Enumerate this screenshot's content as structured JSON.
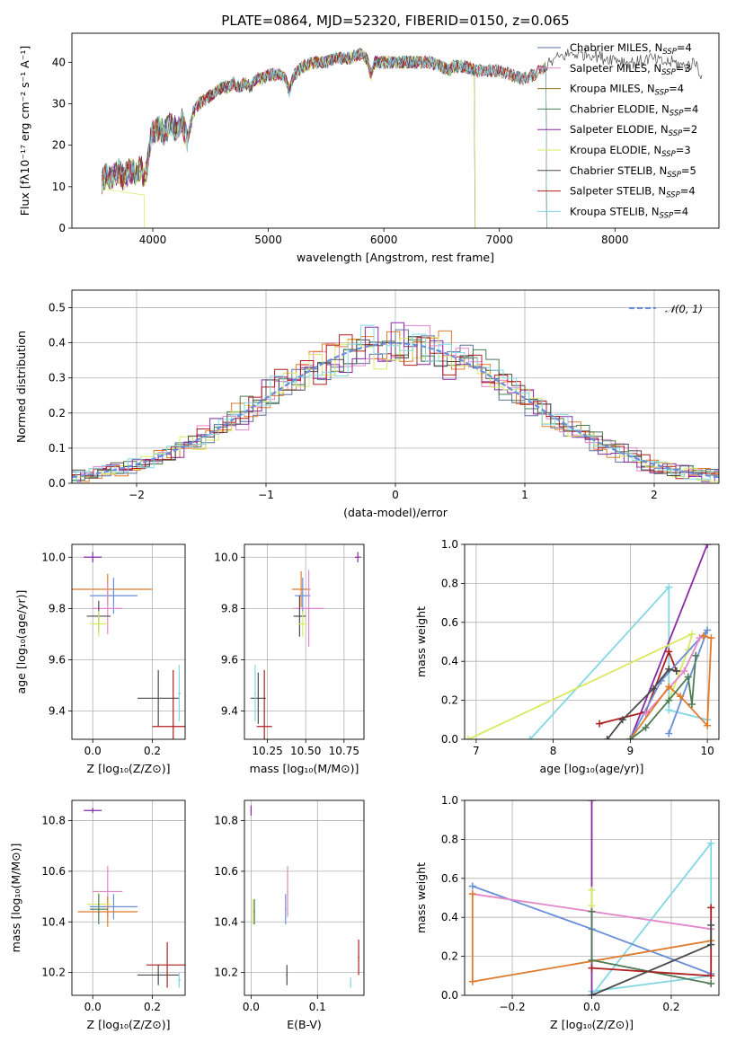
{
  "figure": {
    "title": "PLATE=0864, MJD=52320, FIBERID=0150, z=0.065"
  },
  "chart_data": [
    {
      "id": "spectrum",
      "type": "line",
      "xlabel": "wavelength [Angstrom, rest frame]",
      "ylabel": "Flux [fλ10⁻¹⁷ erg cm⁻² s⁻¹ A⁻¹]",
      "xlim": [
        3300,
        8900
      ],
      "ylim": [
        0,
        47
      ],
      "xticks": [
        4000,
        5000,
        6000,
        7000,
        8000
      ],
      "yticks": [
        0,
        10,
        20,
        30,
        40
      ],
      "grid": false,
      "legend_position": "top-right",
      "spectrum_profile": [
        [
          3560,
          11
        ],
        [
          3600,
          13
        ],
        [
          3650,
          12
        ],
        [
          3700,
          14
        ],
        [
          3750,
          12
        ],
        [
          3800,
          14
        ],
        [
          3850,
          13
        ],
        [
          3900,
          15
        ],
        [
          3920,
          11
        ],
        [
          3950,
          14
        ],
        [
          3980,
          21
        ],
        [
          4000,
          23
        ],
        [
          4050,
          24
        ],
        [
          4100,
          23
        ],
        [
          4150,
          25
        ],
        [
          4200,
          24
        ],
        [
          4250,
          26
        ],
        [
          4300,
          21
        ],
        [
          4350,
          28
        ],
        [
          4400,
          30
        ],
        [
          4450,
          31
        ],
        [
          4500,
          32
        ],
        [
          4550,
          33
        ],
        [
          4600,
          34
        ],
        [
          4650,
          34
        ],
        [
          4700,
          35
        ],
        [
          4750,
          34
        ],
        [
          4800,
          35
        ],
        [
          4850,
          34
        ],
        [
          4900,
          36
        ],
        [
          4950,
          36
        ],
        [
          5000,
          37
        ],
        [
          5050,
          37
        ],
        [
          5100,
          37
        ],
        [
          5150,
          36
        ],
        [
          5180,
          33
        ],
        [
          5220,
          37
        ],
        [
          5300,
          39
        ],
        [
          5400,
          40
        ],
        [
          5500,
          40
        ],
        [
          5600,
          41
        ],
        [
          5700,
          41
        ],
        [
          5800,
          42
        ],
        [
          5850,
          41
        ],
        [
          5890,
          37
        ],
        [
          5920,
          40
        ],
        [
          6000,
          40
        ],
        [
          6100,
          40
        ],
        [
          6200,
          40
        ],
        [
          6300,
          40
        ],
        [
          6400,
          40
        ],
        [
          6500,
          39
        ],
        [
          6560,
          38
        ],
        [
          6600,
          39
        ],
        [
          6700,
          39
        ],
        [
          6800,
          38
        ],
        [
          6900,
          38
        ],
        [
          7000,
          38
        ],
        [
          7100,
          37
        ],
        [
          7200,
          36
        ],
        [
          7300,
          37
        ],
        [
          7400,
          39
        ],
        [
          7500,
          41
        ],
        [
          7600,
          42
        ],
        [
          7700,
          42
        ],
        [
          7800,
          42
        ],
        [
          7900,
          41
        ],
        [
          8000,
          41
        ],
        [
          8100,
          40
        ],
        [
          8200,
          40
        ],
        [
          8300,
          41
        ],
        [
          8400,
          40
        ],
        [
          8500,
          40
        ],
        [
          8600,
          39
        ],
        [
          8700,
          40
        ],
        [
          8760,
          36
        ]
      ],
      "series": [
        {
          "name": "Chabrier MILES, N_SSP=4",
          "color": "#5b6f9b",
          "xmax": 7410
        },
        {
          "name": "Salpeter MILES, N_SSP=3",
          "color": "#e287c9",
          "xmax": 7410
        },
        {
          "name": "Kroupa MILES, N_SSP=4",
          "color": "#8e7521",
          "xmax": 7410
        },
        {
          "name": "Chabrier ELODIE, N_SSP=4",
          "color": "#4d7b54",
          "xmax": 6790
        },
        {
          "name": "Salpeter ELODIE, N_SSP=2",
          "color": "#8a2aa5",
          "xmax": 6790
        },
        {
          "name": "Kroupa ELODIE, N_SSP=3",
          "color": "#d8ea60",
          "xmax": 6790
        },
        {
          "name": "Chabrier STELIB, N_SSP=5",
          "color": "#4b4b4b",
          "xmax": 8760
        },
        {
          "name": "Salpeter STELIB, N_SSP=4",
          "color": "#b01f1f",
          "xmax": 7410
        },
        {
          "name": "Kroupa STELIB, N_SSP=4",
          "color": "#82d7e2",
          "xmax": 7410
        }
      ]
    },
    {
      "id": "residuals",
      "type": "step",
      "xlabel": "(data-model)/error",
      "ylabel": "Normed distribution",
      "xlim": [
        -2.5,
        2.5
      ],
      "ylim": [
        0,
        0.55
      ],
      "xticks": [
        -2,
        -1,
        0,
        1,
        2
      ],
      "yticks": [
        0.0,
        0.1,
        0.2,
        0.3,
        0.4,
        0.5
      ],
      "grid": true,
      "legend_position": "top-right",
      "reference": {
        "name": "𝒩(0, 1)",
        "color": "#6a8ed8",
        "mean": 0,
        "sigma": 1
      },
      "bin_width": 0.1,
      "colors": [
        "#5b6f9b",
        "#e287c9",
        "#e07b2b",
        "#4d7b54",
        "#8a2aa5",
        "#d8ea60",
        "#4b4b4b",
        "#b01f1f",
        "#82d7e2"
      ]
    },
    {
      "id": "age-vs-metallicity",
      "type": "errorbar",
      "xlabel": "Z [log₁₀(Z/Z⊙)]",
      "ylabel": "age  [log₁₀(age/yr)]",
      "xlim": [
        -0.07,
        0.31
      ],
      "ylim": [
        9.29,
        10.05
      ],
      "xticks": [
        0.0,
        0.2
      ],
      "yticks": [
        9.4,
        9.6,
        9.8,
        10.0
      ],
      "grid": true,
      "points": [
        {
          "x": 0.0,
          "xerr": 0.03,
          "y": 10.0,
          "yerr": 0.02,
          "color": "#8a2aa5"
        },
        {
          "x": 0.05,
          "xerr": 0.15,
          "y": 9.875,
          "yerr": 0.06,
          "color": "#e07b2b"
        },
        {
          "x": 0.07,
          "xerr": 0.08,
          "y": 9.85,
          "yerr": 0.07,
          "color": "#6a8ed8"
        },
        {
          "x": 0.05,
          "xerr": 0.05,
          "y": 9.8,
          "yerr": 0.1,
          "color": "#e287c9"
        },
        {
          "x": 0.02,
          "xerr": 0.04,
          "y": 9.77,
          "yerr": 0.06,
          "color": "#4b4b4b"
        },
        {
          "x": 0.02,
          "xerr": 0.03,
          "y": 9.74,
          "yerr": 0.05,
          "color": "#d8ea60"
        },
        {
          "x": 0.22,
          "xerr": 0.07,
          "y": 9.45,
          "yerr": 0.11,
          "color": "#4b4b4b"
        },
        {
          "x": 0.27,
          "xerr": 0.07,
          "y": 9.34,
          "yerr": 0.22,
          "color": "#b01f1f"
        },
        {
          "x": 0.29,
          "xerr": 0.005,
          "y": 9.47,
          "yerr": 0.11,
          "color": "#82d7e2"
        }
      ]
    },
    {
      "id": "age-vs-mass",
      "type": "errorbar",
      "xlabel": "mass [log₁₀(M/M⊙)]",
      "ylabel": "",
      "xlim": [
        10.1,
        10.88
      ],
      "ylim": [
        9.29,
        10.05
      ],
      "xticks": [
        10.25,
        10.5,
        10.75
      ],
      "yticks": [
        9.4,
        9.6,
        9.8,
        10.0
      ],
      "grid": true,
      "points": [
        {
          "x": 10.84,
          "xerr": 0.02,
          "y": 10.0,
          "yerr": 0.02,
          "color": "#8a2aa5"
        },
        {
          "x": 10.47,
          "xerr": 0.06,
          "y": 9.875,
          "yerr": 0.07,
          "color": "#e07b2b"
        },
        {
          "x": 10.48,
          "xerr": 0.05,
          "y": 9.85,
          "yerr": 0.07,
          "color": "#6a8ed8"
        },
        {
          "x": 10.52,
          "xerr": 0.1,
          "y": 9.8,
          "yerr": 0.15,
          "color": "#e287c9"
        },
        {
          "x": 10.46,
          "xerr": 0.04,
          "y": 9.77,
          "yerr": 0.08,
          "color": "#4b4b4b"
        },
        {
          "x": 10.48,
          "xerr": 0.03,
          "y": 9.74,
          "yerr": 0.05,
          "color": "#d8ea60"
        },
        {
          "x": 10.19,
          "xerr": 0.05,
          "y": 9.45,
          "yerr": 0.1,
          "color": "#4b4b4b"
        },
        {
          "x": 10.23,
          "xerr": 0.05,
          "y": 9.34,
          "yerr": 0.22,
          "color": "#b01f1f"
        },
        {
          "x": 10.17,
          "xerr": 0.005,
          "y": 9.47,
          "yerr": 0.11,
          "color": "#82d7e2"
        }
      ]
    },
    {
      "id": "weight-vs-age",
      "type": "line",
      "xlabel": "age  [log₁₀(age/yr)]",
      "ylabel": "mass weight",
      "xlim": [
        6.85,
        10.15
      ],
      "ylim": [
        0,
        1.0
      ],
      "xticks": [
        7,
        8,
        9,
        10
      ],
      "yticks": [
        0.0,
        0.2,
        0.4,
        0.6,
        0.8,
        1.0
      ],
      "grid": true,
      "series": [
        {
          "color": "#82d7e2",
          "x": [
            7.7,
            9.5,
            9.5,
            10.0
          ],
          "y": [
            0.0,
            0.78,
            0.15,
            0.1
          ]
        },
        {
          "color": "#8a2aa5",
          "x": [
            9.0,
            10.0
          ],
          "y": [
            0.0,
            1.0
          ]
        },
        {
          "color": "#d8ea60",
          "x": [
            6.9,
            9.8,
            9.75,
            9.5
          ],
          "y": [
            0.0,
            0.54,
            0.46,
            0.2
          ]
        },
        {
          "color": "#b01f1f",
          "x": [
            8.6,
            9.2,
            9.5,
            9.6
          ],
          "y": [
            0.08,
            0.14,
            0.45,
            0.35
          ]
        },
        {
          "color": "#6a8ed8",
          "x": [
            9.0,
            9.4,
            10.0,
            9.5
          ],
          "y": [
            0.0,
            0.3,
            0.56,
            0.03
          ]
        },
        {
          "color": "#e287c9",
          "x": [
            9.2,
            9.7,
            9.9
          ],
          "y": [
            0.13,
            0.35,
            0.52
          ]
        },
        {
          "color": "#e07b2b",
          "x": [
            9.0,
            9.5,
            9.65,
            10.0,
            10.05,
            9.95
          ],
          "y": [
            0.0,
            0.27,
            0.22,
            0.07,
            0.52,
            0.53
          ]
        },
        {
          "color": "#4d7b54",
          "x": [
            9.0,
            9.2,
            9.5,
            9.75,
            9.8,
            9.85
          ],
          "y": [
            0.0,
            0.06,
            0.2,
            0.32,
            0.18,
            0.43
          ]
        },
        {
          "color": "#4b4b4b",
          "x": [
            8.7,
            8.9,
            9.3,
            9.5,
            9.6
          ],
          "y": [
            0.0,
            0.1,
            0.26,
            0.36,
            0.35
          ]
        }
      ]
    },
    {
      "id": "mass-vs-metallicity",
      "type": "errorbar",
      "xlabel": "Z [log₁₀(Z/Z⊙)]",
      "ylabel": "mass [log₁₀(M/M⊙)]",
      "xlim": [
        -0.07,
        0.31
      ],
      "ylim": [
        10.11,
        10.88
      ],
      "xticks": [
        0.0,
        0.2
      ],
      "yticks": [
        10.2,
        10.4,
        10.6,
        10.8
      ],
      "grid": true,
      "points": [
        {
          "x": 0.0,
          "xerr": 0.03,
          "y": 10.84,
          "yerr": 0.01,
          "color": "#8a2aa5"
        },
        {
          "x": 0.05,
          "xerr": 0.05,
          "y": 10.52,
          "yerr": 0.1,
          "color": "#e287c9"
        },
        {
          "x": 0.07,
          "xerr": 0.08,
          "y": 10.46,
          "yerr": 0.05,
          "color": "#6a8ed8"
        },
        {
          "x": 0.05,
          "xerr": 0.1,
          "y": 10.44,
          "yerr": 0.06,
          "color": "#e07b2b"
        },
        {
          "x": 0.02,
          "xerr": 0.04,
          "y": 10.47,
          "yerr": 0.05,
          "color": "#d8ea60"
        },
        {
          "x": 0.02,
          "xerr": 0.03,
          "y": 10.45,
          "yerr": 0.06,
          "color": "#4d7b54"
        },
        {
          "x": 0.22,
          "xerr": 0.07,
          "y": 10.19,
          "yerr": 0.04,
          "color": "#4b4b4b"
        },
        {
          "x": 0.25,
          "xerr": 0.07,
          "y": 10.23,
          "yerr": 0.09,
          "color": "#b01f1f"
        },
        {
          "x": 0.29,
          "xerr": 0.005,
          "y": 10.17,
          "yerr": 0.03,
          "color": "#82d7e2"
        }
      ]
    },
    {
      "id": "mass-vs-ebv",
      "type": "errorbar",
      "xlabel": "E(B-V)",
      "ylabel": "",
      "xlim": [
        -0.01,
        0.17
      ],
      "ylim": [
        10.11,
        10.88
      ],
      "xticks": [
        0.0,
        0.1
      ],
      "yticks": [
        10.2,
        10.4,
        10.6,
        10.8
      ],
      "grid": true,
      "points": [
        {
          "x": 0.0,
          "xerr": 0.001,
          "y": 10.84,
          "yerr": 0.02,
          "color": "#8a2aa5"
        },
        {
          "x": 0.003,
          "xerr": 0.001,
          "y": 10.44,
          "yerr": 0.05,
          "color": "#d8ea60"
        },
        {
          "x": 0.005,
          "xerr": 0.001,
          "y": 10.44,
          "yerr": 0.05,
          "color": "#4d7b54"
        },
        {
          "x": 0.052,
          "xerr": 0.001,
          "y": 10.45,
          "yerr": 0.06,
          "color": "#6a8ed8"
        },
        {
          "x": 0.055,
          "xerr": 0.001,
          "y": 10.52,
          "yerr": 0.1,
          "color": "#e287c9"
        },
        {
          "x": 0.054,
          "xerr": 0.001,
          "y": 10.19,
          "yerr": 0.04,
          "color": "#4b4b4b"
        },
        {
          "x": 0.162,
          "xerr": 0.001,
          "y": 10.26,
          "yerr": 0.07,
          "color": "#b01f1f"
        },
        {
          "x": 0.15,
          "xerr": 0.001,
          "y": 10.16,
          "yerr": 0.02,
          "color": "#82d7e2"
        }
      ]
    },
    {
      "id": "weight-vs-metallicity",
      "type": "line",
      "xlabel": "Z [log₁₀(Z/Z⊙)]",
      "ylabel": "mass weight",
      "xlim": [
        -0.32,
        0.32
      ],
      "ylim": [
        0,
        1.0
      ],
      "xticks": [
        -0.2,
        0.0,
        0.2
      ],
      "yticks": [
        0.0,
        0.2,
        0.4,
        0.6,
        0.8,
        1.0
      ],
      "grid": true,
      "series": [
        {
          "color": "#82d7e2",
          "x": [
            0.0,
            0.3,
            0.3,
            0.0
          ],
          "y": [
            0.0,
            0.78,
            0.1,
            0.02
          ]
        },
        {
          "color": "#8a2aa5",
          "x": [
            0.0,
            0.0
          ],
          "y": [
            1.0,
            0.0
          ]
        },
        {
          "color": "#6a8ed8",
          "x": [
            -0.3,
            0.0,
            0.3
          ],
          "y": [
            0.56,
            0.34,
            0.11
          ]
        },
        {
          "color": "#e287c9",
          "x": [
            -0.3,
            0.0,
            0.3
          ],
          "y": [
            0.52,
            0.43,
            0.34
          ]
        },
        {
          "color": "#e07b2b",
          "x": [
            -0.3,
            -0.3,
            0.3
          ],
          "y": [
            0.52,
            0.07,
            0.28
          ]
        },
        {
          "color": "#d8ea60",
          "x": [
            0.0,
            0.0
          ],
          "y": [
            0.54,
            0.46
          ]
        },
        {
          "color": "#4d7b54",
          "x": [
            0.0,
            0.0,
            0.3
          ],
          "y": [
            0.43,
            0.18,
            0.06
          ]
        },
        {
          "color": "#b01f1f",
          "x": [
            0.0,
            0.3,
            0.3
          ],
          "y": [
            0.14,
            0.1,
            0.45
          ]
        },
        {
          "color": "#4b4b4b",
          "x": [
            0.0,
            0.3,
            0.3
          ],
          "y": [
            0.0,
            0.26,
            0.36
          ]
        }
      ]
    }
  ]
}
